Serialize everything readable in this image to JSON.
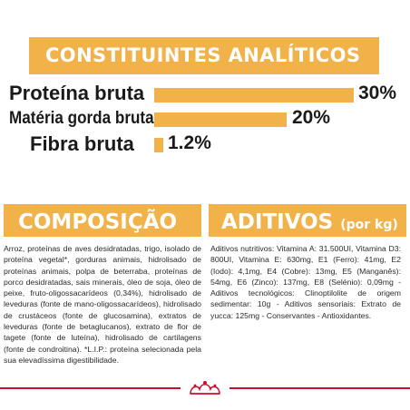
{
  "constituintes": {
    "title": "CONSTITUINTES ANALÍTICOS",
    "rows": [
      {
        "label": "Proteína bruta",
        "value": "30%",
        "fraction": 0.3
      },
      {
        "label": "Matéria gorda bruta",
        "value": "20%",
        "fraction": 0.2
      },
      {
        "label": "Fibra bruta",
        "value": "1.2%",
        "fraction": 0.012
      }
    ]
  },
  "composicao": {
    "title": "COMPOSIÇÃO",
    "text": "Arroz, proteínas de aves desidratadas, trigo, isolado de proteína vegetal*, gorduras animais, hidrolisado de proteínas animais, polpa de beterraba, proteínas de porco desidratadas, sais minerais, óleo de soja, óleo de peixe, fruto-oligossacarídeos (0,34%), hidrolisado de leveduras (fonte de mano-oligossacarídeos), hidrolisado de crustáceos (fonte de glucosamina), extratos de leveduras (fonte de betaglucanos), extrato de flor de tagete (fonte de luteína), hidrolisado de cartilagens (fonte de condroitina). *L.I.P.: proteína selecionada pela sua elevadíssima digestibilidade."
  },
  "aditivos": {
    "title": "ADITIVOS",
    "unit": "(por kg)",
    "text": "Aditivos nutritivos: Vitamina A: 31.500UI, Vitamina D3: 800UI, Vitamina E: 630mg, E1 (Ferro): 41mg, E2 (Iodo): 4,1mg, E4 (Cobre): 13mg, E5 (Manganês): 54mg, E6 (Zinco): 137mg, E8 (Selénio): 0,09mg - Aditivos tecnológicos: Clinoptilolite de origem sedimentar: 10g - Aditivos sensoriais: Extrato de yucca: 125mg - Conservantes - Antioxidantes."
  },
  "footer": {
    "icon": "crown-logo-icon",
    "accent_color": "#c8102e"
  },
  "colors": {
    "accent": "#f2b24a",
    "text": "#1a1a1a"
  }
}
